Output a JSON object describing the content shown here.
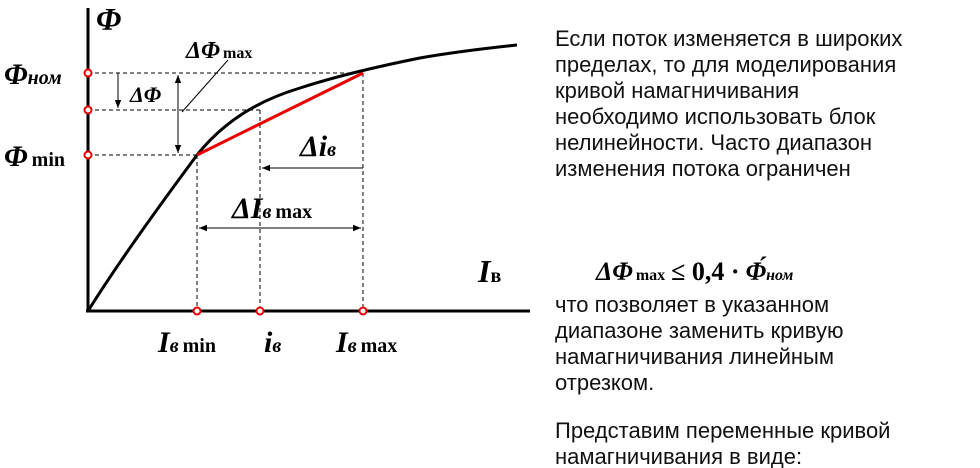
{
  "diagram": {
    "axis_y": "Φ",
    "axis_x": {
      "symbol": "I",
      "sub": "в"
    },
    "flux_nom": {
      "symbol": "Φ",
      "sub": "ном"
    },
    "flux_min": {
      "symbol": "Φ",
      "sub": "min"
    },
    "delta_flux_max": {
      "symbol": "ΔΦ",
      "sub": "max"
    },
    "delta_flux": "ΔΦ",
    "delta_i": {
      "symbol": "Δi",
      "sub": "в"
    },
    "delta_i_max": {
      "symbol": "ΔI",
      "sub": "в",
      "sub2": "max"
    },
    "i_min": {
      "symbol": "I",
      "sub": "в",
      "sub2": "min"
    },
    "i": {
      "symbol": "i",
      "sub": "в"
    },
    "i_max": {
      "symbol": "I",
      "sub": "в",
      "sub2": "max"
    }
  },
  "text": {
    "paragraph1": [
      "Если поток изменяется в широких",
      "пределах, то для моделирования",
      "кривой намагничивания",
      "необходимо использовать блок",
      "нелинейности. Часто диапазон",
      "изменения потока ограничен"
    ],
    "formula": {
      "left": "ΔΦ",
      "left_sub": "max",
      "relation": "≤ 0,4 ·",
      "right": "Φ́",
      "right_sub": "ном"
    },
    "paragraph2": [
      "что позволяет в указанном",
      "диапазоне заменить кривую",
      "намагничивания линейным",
      "отрезком."
    ],
    "paragraph3": [
      "Представим переменные кривой",
      "намагничивания в виде:"
    ]
  }
}
